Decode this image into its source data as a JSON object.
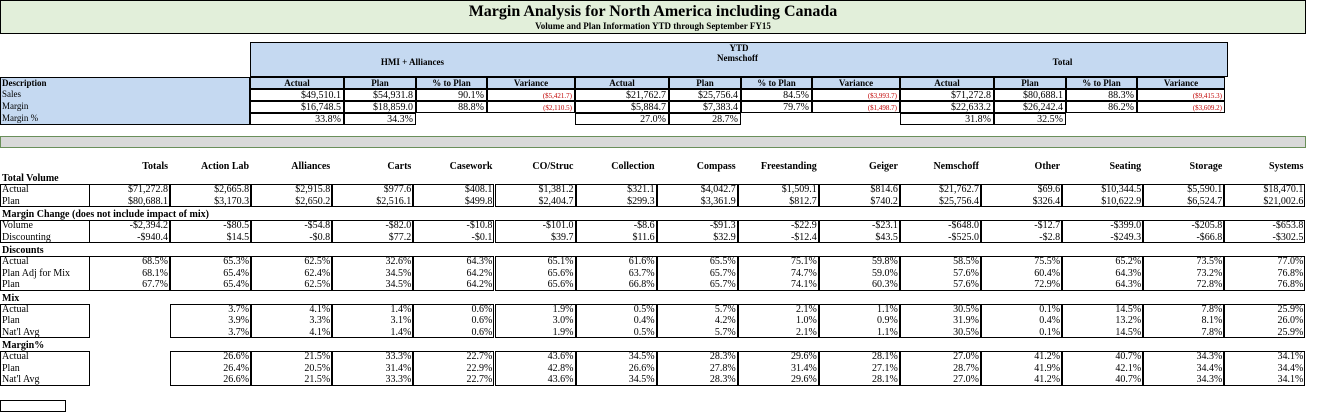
{
  "header": {
    "title": "Margin Analysis for North America including Canada",
    "subtitle": "Volume and Plan Information YTD through September FY15"
  },
  "summary": {
    "period": "YTD",
    "groups": [
      "HMI + Alliances",
      "Nemschoff",
      "Total"
    ],
    "columns": [
      "Actual",
      "Plan",
      "% to Plan",
      "Variance"
    ],
    "row_header": "Description",
    "rows": [
      {
        "label": "Sales",
        "cells": [
          "$49,510.1",
          "$54,931.8",
          "90.1%",
          "($5,421.7)",
          "$21,762.7",
          "$25,756.4",
          "84.5%",
          "($3,993.7)",
          "$71,272.8",
          "$80,688.1",
          "88.3%",
          "($9,415.3)"
        ]
      },
      {
        "label": "Margin",
        "cells": [
          "$16,748.5",
          "$18,859.0",
          "88.8%",
          "($2,110.5)",
          "$5,884.7",
          "$7,383.4",
          "79.7%",
          "($1,498.7)",
          "$22,633.2",
          "$26,242.4",
          "86.2%",
          "($3,609.2)"
        ]
      },
      {
        "label": "Margin %",
        "cells": [
          "33.8%",
          "34.3%",
          null,
          null,
          "27.0%",
          "28.7%",
          null,
          null,
          "31.8%",
          "32.5%",
          null,
          null
        ]
      }
    ]
  },
  "detail": {
    "columns": [
      "Totals",
      "Action Lab",
      "Alliances",
      "Carts",
      "Casework",
      "CO/Struc",
      "Collection",
      "Compass",
      "Freestanding",
      "Geiger",
      "Nemschoff",
      "Other",
      "Seating",
      "Storage",
      "Systems"
    ],
    "sections": [
      {
        "title": "Total Volume",
        "rows": [
          {
            "label": "Actual",
            "cells": [
              "$71,272.8",
              "$2,665.8",
              "$2,915.8",
              "$977.6",
              "$408.1",
              "$1,381.2",
              "$321.1",
              "$4,042.7",
              "$1,509.1",
              "$814.6",
              "$21,762.7",
              "$69.6",
              "$10,344.5",
              "$5,590.1",
              "$18,470.1"
            ]
          },
          {
            "label": "Plan",
            "cells": [
              "$80,688.1",
              "$3,170.3",
              "$2,650.2",
              "$2,516.1",
              "$499.8",
              "$2,404.7",
              "$299.3",
              "$3,361.9",
              "$812.7",
              "$740.2",
              "$25,756.4",
              "$326.4",
              "$10,622.9",
              "$6,524.7",
              "$21,002.6"
            ]
          }
        ]
      },
      {
        "title": "Margin Change (does not include impact of mix)",
        "rows": [
          {
            "label": "Volume",
            "cells": [
              "-$2,394.2",
              "-$80.5",
              "-$54.8",
              "-$82.0",
              "-$10.8",
              "-$101.0",
              "-$8.6",
              "-$91.3",
              "-$22.9",
              "-$23.1",
              "-$648.0",
              "-$12.7",
              "-$399.0",
              "-$205.8",
              "-$653.8"
            ]
          },
          {
            "label": "Discounting",
            "cells": [
              "-$940.4",
              "$14.5",
              "-$0.8",
              "$77.2",
              "-$0.1",
              "$39.7",
              "$11.6",
              "$32.9",
              "-$12.4",
              "$43.5",
              "-$525.0",
              "-$2.8",
              "-$249.3",
              "-$66.8",
              "-$302.5"
            ]
          }
        ]
      },
      {
        "title": "Discounts",
        "rows": [
          {
            "label": "Actual",
            "cells": [
              "68.5%",
              "65.3%",
              "62.5%",
              "32.6%",
              "64.3%",
              "65.1%",
              "61.6%",
              "65.5%",
              "75.1%",
              "59.8%",
              "58.5%",
              "75.5%",
              "65.2%",
              "73.5%",
              "77.0%"
            ]
          },
          {
            "label": "Plan Adj for Mix",
            "cells": [
              "68.1%",
              "65.4%",
              "62.4%",
              "34.5%",
              "64.2%",
              "65.6%",
              "63.7%",
              "65.7%",
              "74.7%",
              "59.0%",
              "57.6%",
              "60.4%",
              "64.3%",
              "73.2%",
              "76.8%"
            ]
          },
          {
            "label": "Plan",
            "cells": [
              "67.7%",
              "65.4%",
              "62.5%",
              "34.5%",
              "64.2%",
              "65.6%",
              "66.8%",
              "65.7%",
              "74.1%",
              "60.3%",
              "57.6%",
              "72.9%",
              "64.3%",
              "72.8%",
              "76.8%"
            ]
          }
        ]
      },
      {
        "title": "Mix",
        "rows": [
          {
            "label": "Actual",
            "cells": [
              null,
              "3.7%",
              "4.1%",
              "1.4%",
              "0.6%",
              "1.9%",
              "0.5%",
              "5.7%",
              "2.1%",
              "1.1%",
              "30.5%",
              "0.1%",
              "14.5%",
              "7.8%",
              "25.9%"
            ]
          },
          {
            "label": "Plan",
            "cells": [
              null,
              "3.9%",
              "3.3%",
              "3.1%",
              "0.6%",
              "3.0%",
              "0.4%",
              "4.2%",
              "1.0%",
              "0.9%",
              "31.9%",
              "0.4%",
              "13.2%",
              "8.1%",
              "26.0%"
            ]
          },
          {
            "label": "Nat'l Avg",
            "cells": [
              null,
              "3.7%",
              "4.1%",
              "1.4%",
              "0.6%",
              "1.9%",
              "0.5%",
              "5.7%",
              "2.1%",
              "1.1%",
              "30.5%",
              "0.1%",
              "14.5%",
              "7.8%",
              "25.9%"
            ]
          }
        ]
      },
      {
        "title": "Margin%",
        "rows": [
          {
            "label": "Actual",
            "cells": [
              null,
              "26.6%",
              "21.5%",
              "33.3%",
              "22.7%",
              "43.6%",
              "34.5%",
              "28.3%",
              "29.6%",
              "28.1%",
              "27.0%",
              "41.2%",
              "40.7%",
              "34.3%",
              "34.1%"
            ]
          },
          {
            "label": "Plan",
            "cells": [
              null,
              "26.4%",
              "20.5%",
              "31.4%",
              "22.9%",
              "42.8%",
              "26.6%",
              "27.8%",
              "31.4%",
              "27.1%",
              "28.7%",
              "41.9%",
              "42.1%",
              "34.4%",
              "34.4%"
            ]
          },
          {
            "label": "Nat'l Avg",
            "cells": [
              null,
              "26.6%",
              "21.5%",
              "33.3%",
              "22.7%",
              "43.6%",
              "34.5%",
              "28.3%",
              "29.6%",
              "28.1%",
              "27.0%",
              "41.2%",
              "40.7%",
              "34.3%",
              "34.1%"
            ]
          }
        ]
      }
    ]
  }
}
